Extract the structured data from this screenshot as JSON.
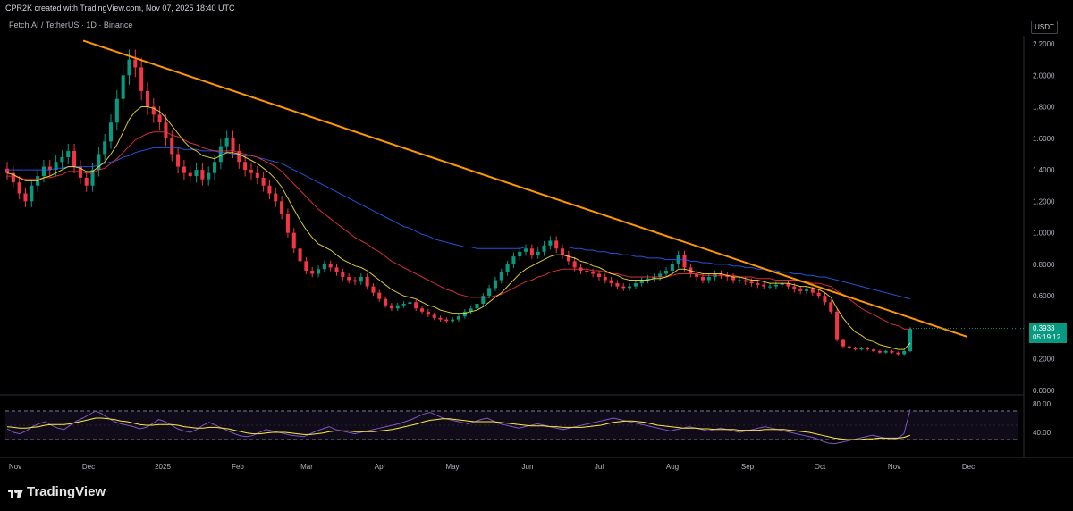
{
  "header": {
    "caption": "CPR2K created with TradingView.com, Nov 07, 2025 18:40 UTC",
    "symbol": "Fetch.AI / TetherUS · 1D · Binance",
    "currency": "USDT"
  },
  "price_label": {
    "price": "0.3933",
    "countdown": "05:19:12"
  },
  "footer": {
    "brand": "TradingView"
  },
  "colors": {
    "background": "#000000",
    "trendline": "#ff9800",
    "ema_fast": "#ffeb3b",
    "ema_mid": "#f23645",
    "ema_slow": "#2962ff",
    "up_candle": "#089981",
    "down_candle": "#f23645",
    "rsi": "#7e57c2",
    "rsi_ma": "#ffeb3b"
  },
  "chart_data": [
    {
      "type": "candlestick",
      "x_ticks": [
        "Nov",
        "Dec",
        "2025",
        "Feb",
        "Mar",
        "Apr",
        "May",
        "Jun",
        "Jul",
        "Aug",
        "Sep",
        "Oct",
        "Nov",
        "Dec"
      ],
      "y_ticks": [
        "2.2000",
        "2.0000",
        "1.8000",
        "1.6000",
        "1.4000",
        "1.2000",
        "1.0000",
        "0.8000",
        "0.6000",
        "0.4000",
        "0.2000",
        "0.0000"
      ],
      "ylim": [
        0,
        2.3
      ],
      "close": [
        1.38,
        1.32,
        1.25,
        1.2,
        1.3,
        1.36,
        1.42,
        1.4,
        1.45,
        1.48,
        1.52,
        1.42,
        1.35,
        1.3,
        1.4,
        1.5,
        1.58,
        1.7,
        1.85,
        2.0,
        2.1,
        2.05,
        1.9,
        1.8,
        1.75,
        1.7,
        1.6,
        1.5,
        1.42,
        1.38,
        1.36,
        1.4,
        1.34,
        1.38,
        1.45,
        1.55,
        1.6,
        1.52,
        1.45,
        1.4,
        1.38,
        1.35,
        1.3,
        1.25,
        1.2,
        1.12,
        1.0,
        0.9,
        0.82,
        0.76,
        0.74,
        0.77,
        0.8,
        0.78,
        0.75,
        0.72,
        0.7,
        0.69,
        0.72,
        0.66,
        0.62,
        0.58,
        0.54,
        0.52,
        0.54,
        0.55,
        0.56,
        0.52,
        0.5,
        0.48,
        0.46,
        0.45,
        0.44,
        0.45,
        0.47,
        0.5,
        0.52,
        0.55,
        0.6,
        0.65,
        0.7,
        0.75,
        0.8,
        0.85,
        0.88,
        0.9,
        0.86,
        0.88,
        0.92,
        0.95,
        0.9,
        0.86,
        0.82,
        0.78,
        0.76,
        0.75,
        0.74,
        0.72,
        0.7,
        0.68,
        0.66,
        0.65,
        0.66,
        0.68,
        0.7,
        0.71,
        0.72,
        0.74,
        0.76,
        0.8,
        0.86,
        0.78,
        0.74,
        0.72,
        0.7,
        0.72,
        0.74,
        0.73,
        0.72,
        0.7,
        0.7,
        0.69,
        0.68,
        0.67,
        0.66,
        0.66,
        0.67,
        0.68,
        0.66,
        0.64,
        0.63,
        0.64,
        0.62,
        0.6,
        0.56,
        0.5,
        0.32,
        0.28,
        0.27,
        0.26,
        0.27,
        0.26,
        0.25,
        0.24,
        0.25,
        0.24,
        0.23,
        0.25,
        0.39
      ],
      "ema_fast": [
        1.38,
        1.37,
        1.35,
        1.33,
        1.33,
        1.33,
        1.35,
        1.36,
        1.38,
        1.4,
        1.42,
        1.42,
        1.41,
        1.39,
        1.39,
        1.42,
        1.45,
        1.5,
        1.56,
        1.64,
        1.72,
        1.77,
        1.8,
        1.8,
        1.79,
        1.77,
        1.73,
        1.68,
        1.63,
        1.58,
        1.54,
        1.52,
        1.49,
        1.48,
        1.47,
        1.49,
        1.51,
        1.51,
        1.5,
        1.48,
        1.46,
        1.44,
        1.41,
        1.38,
        1.34,
        1.29,
        1.22,
        1.15,
        1.08,
        1.02,
        0.97,
        0.93,
        0.91,
        0.89,
        0.86,
        0.83,
        0.81,
        0.79,
        0.78,
        0.76,
        0.73,
        0.7,
        0.67,
        0.64,
        0.62,
        0.6,
        0.59,
        0.58,
        0.56,
        0.54,
        0.53,
        0.51,
        0.5,
        0.49,
        0.49,
        0.49,
        0.5,
        0.51,
        0.53,
        0.56,
        0.59,
        0.62,
        0.66,
        0.7,
        0.74,
        0.77,
        0.79,
        0.81,
        0.83,
        0.85,
        0.86,
        0.86,
        0.85,
        0.84,
        0.82,
        0.81,
        0.79,
        0.78,
        0.76,
        0.74,
        0.73,
        0.71,
        0.7,
        0.7,
        0.7,
        0.7,
        0.71,
        0.71,
        0.72,
        0.74,
        0.77,
        0.77,
        0.76,
        0.75,
        0.74,
        0.74,
        0.74,
        0.74,
        0.73,
        0.72,
        0.72,
        0.71,
        0.7,
        0.7,
        0.69,
        0.68,
        0.68,
        0.68,
        0.68,
        0.67,
        0.66,
        0.66,
        0.65,
        0.64,
        0.62,
        0.59,
        0.52,
        0.46,
        0.41,
        0.37,
        0.35,
        0.32,
        0.31,
        0.29,
        0.28,
        0.27,
        0.26,
        0.26,
        0.3
      ],
      "ema_mid": [
        1.36,
        1.36,
        1.35,
        1.34,
        1.34,
        1.34,
        1.35,
        1.35,
        1.36,
        1.37,
        1.39,
        1.39,
        1.39,
        1.38,
        1.38,
        1.4,
        1.41,
        1.44,
        1.47,
        1.51,
        1.55,
        1.59,
        1.61,
        1.63,
        1.64,
        1.64,
        1.64,
        1.62,
        1.61,
        1.59,
        1.57,
        1.56,
        1.54,
        1.53,
        1.52,
        1.52,
        1.52,
        1.52,
        1.51,
        1.5,
        1.49,
        1.48,
        1.46,
        1.44,
        1.42,
        1.39,
        1.35,
        1.31,
        1.27,
        1.23,
        1.19,
        1.15,
        1.12,
        1.09,
        1.06,
        1.03,
        1.0,
        0.97,
        0.95,
        0.93,
        0.9,
        0.88,
        0.85,
        0.82,
        0.8,
        0.78,
        0.76,
        0.74,
        0.72,
        0.7,
        0.68,
        0.66,
        0.64,
        0.63,
        0.61,
        0.6,
        0.59,
        0.59,
        0.59,
        0.59,
        0.6,
        0.61,
        0.63,
        0.65,
        0.67,
        0.69,
        0.7,
        0.72,
        0.73,
        0.75,
        0.76,
        0.77,
        0.77,
        0.77,
        0.77,
        0.77,
        0.76,
        0.76,
        0.75,
        0.74,
        0.74,
        0.73,
        0.72,
        0.72,
        0.72,
        0.72,
        0.72,
        0.72,
        0.72,
        0.73,
        0.74,
        0.74,
        0.74,
        0.74,
        0.73,
        0.73,
        0.73,
        0.73,
        0.73,
        0.73,
        0.72,
        0.72,
        0.72,
        0.71,
        0.71,
        0.71,
        0.7,
        0.7,
        0.7,
        0.7,
        0.69,
        0.69,
        0.68,
        0.68,
        0.67,
        0.66,
        0.63,
        0.61,
        0.58,
        0.55,
        0.52,
        0.5,
        0.48,
        0.46,
        0.44,
        0.42,
        0.41,
        0.39,
        0.39
      ],
      "ema_slow": [
        1.4,
        1.4,
        1.4,
        1.4,
        1.4,
        1.4,
        1.4,
        1.4,
        1.41,
        1.41,
        1.42,
        1.42,
        1.42,
        1.42,
        1.42,
        1.43,
        1.44,
        1.45,
        1.46,
        1.48,
        1.49,
        1.51,
        1.52,
        1.53,
        1.54,
        1.54,
        1.54,
        1.54,
        1.54,
        1.53,
        1.53,
        1.53,
        1.52,
        1.52,
        1.52,
        1.51,
        1.51,
        1.5,
        1.5,
        1.49,
        1.49,
        1.48,
        1.47,
        1.46,
        1.45,
        1.44,
        1.42,
        1.4,
        1.38,
        1.36,
        1.34,
        1.32,
        1.3,
        1.28,
        1.26,
        1.24,
        1.22,
        1.2,
        1.18,
        1.16,
        1.14,
        1.12,
        1.1,
        1.08,
        1.06,
        1.04,
        1.03,
        1.01,
        0.99,
        0.98,
        0.96,
        0.95,
        0.94,
        0.93,
        0.92,
        0.91,
        0.91,
        0.9,
        0.9,
        0.9,
        0.9,
        0.9,
        0.9,
        0.9,
        0.9,
        0.91,
        0.91,
        0.91,
        0.91,
        0.91,
        0.91,
        0.91,
        0.91,
        0.9,
        0.9,
        0.89,
        0.89,
        0.88,
        0.88,
        0.87,
        0.87,
        0.86,
        0.86,
        0.85,
        0.85,
        0.84,
        0.84,
        0.84,
        0.83,
        0.83,
        0.83,
        0.83,
        0.82,
        0.82,
        0.81,
        0.81,
        0.8,
        0.8,
        0.8,
        0.79,
        0.79,
        0.78,
        0.78,
        0.77,
        0.77,
        0.76,
        0.76,
        0.75,
        0.75,
        0.74,
        0.74,
        0.73,
        0.73,
        0.72,
        0.72,
        0.71,
        0.7,
        0.69,
        0.68,
        0.67,
        0.66,
        0.65,
        0.64,
        0.63,
        0.62,
        0.61,
        0.6,
        0.59,
        0.58
      ],
      "trendline": [
        [
          0,
          2.22
        ],
        [
          1080,
          0.34
        ]
      ],
      "last_price": 0.3933
    },
    {
      "type": "line",
      "name": "RSI",
      "y_ticks": [
        "80.00",
        "40.00"
      ],
      "ylim": [
        20,
        90
      ],
      "bands": [
        70,
        30
      ],
      "rsi": [
        45,
        40,
        38,
        42,
        48,
        52,
        55,
        50,
        46,
        44,
        50,
        56,
        60,
        65,
        70,
        66,
        60,
        55,
        52,
        50,
        48,
        45,
        47,
        52,
        58,
        55,
        50,
        45,
        42,
        40,
        44,
        50,
        54,
        50,
        46,
        42,
        38,
        35,
        34,
        36,
        40,
        44,
        42,
        40,
        38,
        36,
        35,
        34,
        38,
        42,
        45,
        48,
        44,
        42,
        40,
        38,
        40,
        42,
        44,
        46,
        48,
        50,
        52,
        55,
        58,
        62,
        66,
        68,
        64,
        60,
        58,
        56,
        54,
        52,
        55,
        58,
        60,
        56,
        52,
        50,
        48,
        46,
        48,
        50,
        52,
        50,
        48,
        46,
        44,
        46,
        48,
        50,
        52,
        54,
        56,
        58,
        60,
        58,
        56,
        54,
        52,
        50,
        48,
        46,
        44,
        42,
        44,
        46,
        48,
        46,
        44,
        42,
        44,
        46,
        44,
        42,
        40,
        42,
        44,
        46,
        48,
        46,
        44,
        42,
        40,
        38,
        36,
        34,
        32,
        28,
        25,
        24,
        26,
        28,
        30,
        32,
        34,
        36,
        34,
        32,
        30,
        32,
        38,
        72
      ],
      "rsi_ma": [
        48,
        47,
        46,
        46,
        47,
        48,
        50,
        51,
        51,
        51,
        52,
        54,
        56,
        58,
        60,
        60,
        59,
        58,
        56,
        55,
        53,
        51,
        50,
        50,
        51,
        51,
        51,
        50,
        48,
        47,
        46,
        46,
        47,
        47,
        46,
        45,
        43,
        41,
        39,
        38,
        38,
        39,
        40,
        40,
        40,
        39,
        38,
        37,
        37,
        38,
        39,
        41,
        42,
        42,
        42,
        41,
        41,
        41,
        41,
        42,
        43,
        44,
        46,
        48,
        50,
        52,
        55,
        57,
        58,
        59,
        59,
        58,
        57,
        56,
        55,
        55,
        55,
        55,
        54,
        53,
        52,
        51,
        50,
        49,
        49,
        49,
        48,
        48,
        47,
        47,
        47,
        47,
        48,
        49,
        50,
        52,
        54,
        55,
        56,
        56,
        55,
        54,
        52,
        50,
        49,
        48,
        47,
        46,
        46,
        46,
        45,
        45,
        44,
        44,
        44,
        44,
        43,
        43,
        43,
        43,
        44,
        44,
        44,
        44,
        43,
        42,
        41,
        40,
        38,
        36,
        34,
        32,
        31,
        30,
        30,
        30,
        31,
        31,
        32,
        32,
        32,
        32,
        33,
        36
      ]
    }
  ]
}
